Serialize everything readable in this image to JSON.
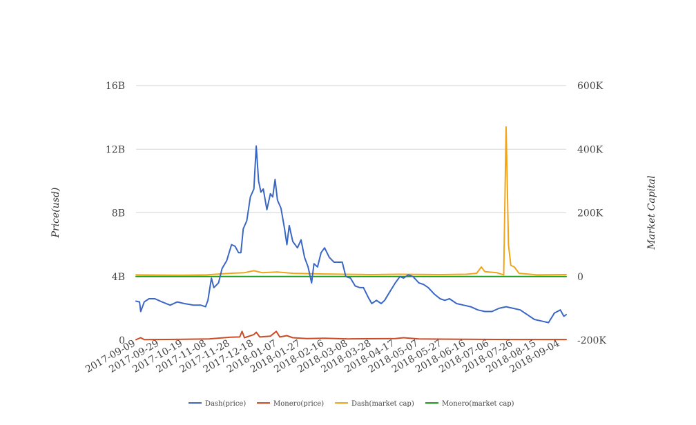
{
  "chart_data": {
    "type": "line",
    "title": "",
    "ylabel_left": "Price(usd)",
    "ylabel_right": "Market Capital",
    "left_axis": {
      "ticks": [
        "0",
        "4B",
        "8B",
        "12B",
        "16B"
      ],
      "range": [
        0,
        16000000000
      ]
    },
    "right_axis": {
      "ticks": [
        "-200K",
        "0",
        "200K",
        "400K",
        "600K"
      ],
      "range": [
        -200000,
        600000
      ]
    },
    "x_ticks": [
      "2017-09-09",
      "2017-09-29",
      "2017-10-19",
      "2017-11-08",
      "2017-11-28",
      "2017-12-18",
      "2018-01-07",
      "2018-01-27",
      "2018-02-16",
      "2018-03-08",
      "2018-03-28",
      "2018-04-17",
      "2018-05-07",
      "2018-05-27",
      "2018-06-16",
      "2018-07-06",
      "2018-07-26",
      "2018-08-15",
      "2018-09-04"
    ],
    "x_range": [
      "2017-09-09",
      "2018-09-09"
    ],
    "grid": "horizontal",
    "legend_position": "bottom",
    "series": [
      {
        "name": "Dash(price)",
        "color": "#3a66c4",
        "axis": "left",
        "points": [
          [
            "2017-09-09",
            2450000000.0
          ],
          [
            "2017-09-12",
            2400000000.0
          ],
          [
            "2017-09-13",
            1800000000.0
          ],
          [
            "2017-09-16",
            2400000000.0
          ],
          [
            "2017-09-20",
            2600000000.0
          ],
          [
            "2017-09-25",
            2600000000.0
          ],
          [
            "2017-10-01",
            2400000000.0
          ],
          [
            "2017-10-08",
            2200000000.0
          ],
          [
            "2017-10-14",
            2400000000.0
          ],
          [
            "2017-10-20",
            2300000000.0
          ],
          [
            "2017-10-28",
            2200000000.0
          ],
          [
            "2017-11-03",
            2200000000.0
          ],
          [
            "2017-11-07",
            2100000000.0
          ],
          [
            "2017-11-09",
            2500000000.0
          ],
          [
            "2017-11-12",
            3900000000.0
          ],
          [
            "2017-11-14",
            3300000000.0
          ],
          [
            "2017-11-18",
            3600000000.0
          ],
          [
            "2017-11-21",
            4500000000.0
          ],
          [
            "2017-11-25",
            5000000000.0
          ],
          [
            "2017-11-29",
            6000000000.0
          ],
          [
            "2017-12-02",
            5900000000.0
          ],
          [
            "2017-12-05",
            5500000000.0
          ],
          [
            "2017-12-07",
            5500000000.0
          ],
          [
            "2017-12-09",
            7000000000.0
          ],
          [
            "2017-12-12",
            7500000000.0
          ],
          [
            "2017-12-15",
            9000000000.0
          ],
          [
            "2017-12-18",
            9500000000.0
          ],
          [
            "2017-12-20",
            12200000000.0
          ],
          [
            "2017-12-22",
            10000000000.0
          ],
          [
            "2017-12-24",
            9300000000.0
          ],
          [
            "2017-12-26",
            9500000000.0
          ],
          [
            "2017-12-29",
            8200000000.0
          ],
          [
            "2018-01-01",
            9200000000.0
          ],
          [
            "2018-01-03",
            9000000000.0
          ],
          [
            "2018-01-05",
            10100000000.0
          ],
          [
            "2018-01-07",
            8800000000.0
          ],
          [
            "2018-01-10",
            8300000000.0
          ],
          [
            "2018-01-13",
            7000000000.0
          ],
          [
            "2018-01-15",
            6000000000.0
          ],
          [
            "2018-01-17",
            7200000000.0
          ],
          [
            "2018-01-20",
            6200000000.0
          ],
          [
            "2018-01-24",
            5800000000.0
          ],
          [
            "2018-01-27",
            6300000000.0
          ],
          [
            "2018-01-30",
            5200000000.0
          ],
          [
            "2018-02-02",
            4600000000.0
          ],
          [
            "2018-02-05",
            3600000000.0
          ],
          [
            "2018-02-07",
            4800000000.0
          ],
          [
            "2018-02-10",
            4600000000.0
          ],
          [
            "2018-02-13",
            5500000000.0
          ],
          [
            "2018-02-16",
            5800000000.0
          ],
          [
            "2018-02-20",
            5200000000.0
          ],
          [
            "2018-02-24",
            4900000000.0
          ],
          [
            "2018-02-28",
            4900000000.0
          ],
          [
            "2018-03-03",
            4900000000.0
          ],
          [
            "2018-03-06",
            4000000000.0
          ],
          [
            "2018-03-10",
            3900000000.0
          ],
          [
            "2018-03-14",
            3400000000.0
          ],
          [
            "2018-03-18",
            3300000000.0
          ],
          [
            "2018-03-21",
            3300000000.0
          ],
          [
            "2018-03-25",
            2700000000.0
          ],
          [
            "2018-03-28",
            2300000000.0
          ],
          [
            "2018-04-01",
            2500000000.0
          ],
          [
            "2018-04-05",
            2300000000.0
          ],
          [
            "2018-04-08",
            2500000000.0
          ],
          [
            "2018-04-12",
            3000000000.0
          ],
          [
            "2018-04-17",
            3600000000.0
          ],
          [
            "2018-04-21",
            4000000000.0
          ],
          [
            "2018-04-24",
            3900000000.0
          ],
          [
            "2018-04-28",
            4100000000.0
          ],
          [
            "2018-05-02",
            4000000000.0
          ],
          [
            "2018-05-07",
            3600000000.0
          ],
          [
            "2018-05-11",
            3500000000.0
          ],
          [
            "2018-05-15",
            3300000000.0
          ],
          [
            "2018-05-20",
            2900000000.0
          ],
          [
            "2018-05-25",
            2600000000.0
          ],
          [
            "2018-05-29",
            2500000000.0
          ],
          [
            "2018-06-02",
            2600000000.0
          ],
          [
            "2018-06-08",
            2300000000.0
          ],
          [
            "2018-06-14",
            2200000000.0
          ],
          [
            "2018-06-20",
            2100000000.0
          ],
          [
            "2018-06-26",
            1900000000.0
          ],
          [
            "2018-07-02",
            1800000000.0
          ],
          [
            "2018-07-08",
            1800000000.0
          ],
          [
            "2018-07-14",
            2000000000.0
          ],
          [
            "2018-07-20",
            2100000000.0
          ],
          [
            "2018-07-26",
            2000000000.0
          ],
          [
            "2018-08-01",
            1900000000.0
          ],
          [
            "2018-08-07",
            1600000000.0
          ],
          [
            "2018-08-13",
            1300000000.0
          ],
          [
            "2018-08-19",
            1200000000.0
          ],
          [
            "2018-08-25",
            1100000000.0
          ],
          [
            "2018-08-30",
            1700000000.0
          ],
          [
            "2018-09-04",
            1900000000.0
          ],
          [
            "2018-09-07",
            1500000000.0
          ],
          [
            "2018-09-09",
            1600000000.0
          ]
        ]
      },
      {
        "name": "Monero(price)",
        "color": "#cc4a24",
        "axis": "left",
        "points": [
          [
            "2017-09-09",
            30000000.0
          ],
          [
            "2017-09-13",
            150000000.0
          ],
          [
            "2017-09-16",
            30000000.0
          ],
          [
            "2017-10-19",
            50000000.0
          ],
          [
            "2017-11-10",
            80000000.0
          ],
          [
            "2017-11-28",
            180000000.0
          ],
          [
            "2017-12-06",
            200000000.0
          ],
          [
            "2017-12-08",
            550000000.0
          ],
          [
            "2017-12-10",
            150000000.0
          ],
          [
            "2017-12-18",
            350000000.0
          ],
          [
            "2017-12-20",
            500000000.0
          ],
          [
            "2017-12-23",
            200000000.0
          ],
          [
            "2018-01-01",
            250000000.0
          ],
          [
            "2018-01-06",
            550000000.0
          ],
          [
            "2018-01-09",
            200000000.0
          ],
          [
            "2018-01-15",
            280000000.0
          ],
          [
            "2018-01-20",
            150000000.0
          ],
          [
            "2018-02-01",
            100000000.0
          ],
          [
            "2018-02-16",
            120000000.0
          ],
          [
            "2018-03-08",
            80000000.0
          ],
          [
            "2018-04-17",
            100000000.0
          ],
          [
            "2018-04-24",
            150000000.0
          ],
          [
            "2018-05-07",
            80000000.0
          ],
          [
            "2018-06-16",
            50000000.0
          ],
          [
            "2018-07-26",
            40000000.0
          ],
          [
            "2018-09-09",
            40000000.0
          ]
        ]
      },
      {
        "name": "Dash(market cap)",
        "color": "#f0a41a",
        "axis": "right",
        "points": [
          [
            "2017-09-09",
            5000
          ],
          [
            "2017-10-19",
            4000
          ],
          [
            "2017-11-08",
            5000
          ],
          [
            "2017-11-28",
            10000
          ],
          [
            "2017-12-10",
            12000
          ],
          [
            "2017-12-18",
            18000
          ],
          [
            "2017-12-25",
            12000
          ],
          [
            "2018-01-07",
            14000
          ],
          [
            "2018-01-20",
            10000
          ],
          [
            "2018-02-16",
            8000
          ],
          [
            "2018-03-28",
            6000
          ],
          [
            "2018-04-20",
            7000
          ],
          [
            "2018-05-27",
            6000
          ],
          [
            "2018-06-16",
            7000
          ],
          [
            "2018-06-25",
            10000
          ],
          [
            "2018-06-29",
            30000
          ],
          [
            "2018-07-02",
            15000
          ],
          [
            "2018-07-12",
            12000
          ],
          [
            "2018-07-18",
            5000
          ],
          [
            "2018-07-20",
            470000
          ],
          [
            "2018-07-22",
            100000
          ],
          [
            "2018-07-24",
            35000
          ],
          [
            "2018-07-27",
            30000
          ],
          [
            "2018-07-31",
            10000
          ],
          [
            "2018-08-15",
            5000
          ],
          [
            "2018-09-09",
            6000
          ]
        ]
      },
      {
        "name": "Monero(market cap)",
        "color": "#1e9a1e",
        "axis": "right",
        "points": [
          [
            "2017-09-09",
            0
          ],
          [
            "2018-09-09",
            0
          ]
        ]
      }
    ]
  }
}
